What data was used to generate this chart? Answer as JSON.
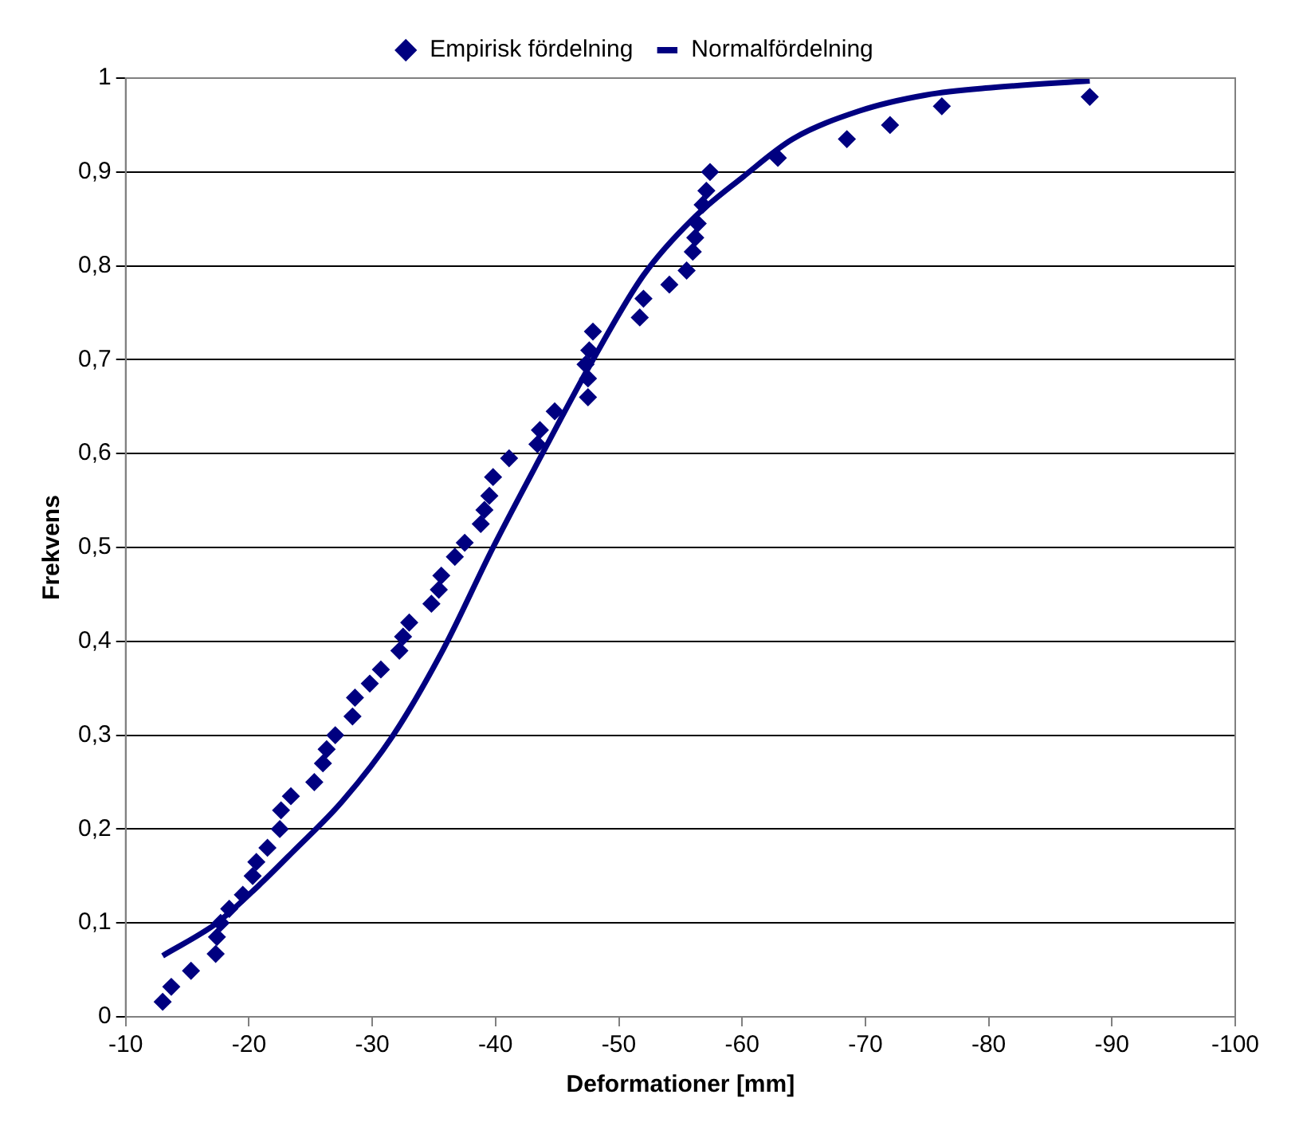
{
  "chart_data": {
    "type": "scatter",
    "xlabel": "Deformationer [mm]",
    "ylabel": "Frekvens",
    "xlim": [
      -10,
      -100
    ],
    "xticks": [
      -10,
      -20,
      -30,
      -40,
      -50,
      -60,
      -70,
      -80,
      -90,
      -100
    ],
    "ylim": [
      0,
      1
    ],
    "yticks": [
      0,
      {
        "value": 0.1,
        "label": "0,1"
      },
      {
        "value": 0.2,
        "label": "0,2"
      },
      {
        "value": 0.3,
        "label": "0,3"
      },
      {
        "value": 0.4,
        "label": "0,4"
      },
      {
        "value": 0.5,
        "label": "0,5"
      },
      {
        "value": 0.6,
        "label": "0,6"
      },
      {
        "value": 0.7,
        "label": "0,7"
      },
      {
        "value": 0.8,
        "label": "0,8"
      },
      {
        "value": 0.9,
        "label": "0,9"
      },
      1
    ],
    "grid": "y",
    "legend": "top",
    "series": [
      {
        "name": "Empirisk fördelning",
        "marker": "diamond",
        "color": "#000080",
        "x": [
          -13.0,
          -13.7,
          -15.3,
          -17.3,
          -17.4,
          -17.7,
          -18.4,
          -19.5,
          -20.3,
          -20.6,
          -21.5,
          -22.5,
          -22.6,
          -23.4,
          -25.3,
          -26,
          -26.3,
          -27,
          -28.4,
          -28.6,
          -29.8,
          -30.7,
          -32.2,
          -32.5,
          -33,
          -34.8,
          -35.4,
          -35.6,
          -36.7,
          -37.5,
          -38.8,
          -39.1,
          -39.5,
          -39.8,
          -41.1,
          -43.4,
          -43.6,
          -44.8,
          -47.5,
          -47.5,
          -47.3,
          -47.6,
          -47.9,
          -51.7,
          -52,
          -54.1,
          -55.5,
          -56,
          -56.2,
          -56.4,
          -56.8,
          -57.1,
          -57.4,
          -62.9,
          -68.5,
          -72,
          -76.2,
          -88.2
        ],
        "values": [
          0.016,
          0.032,
          0.049,
          0.067,
          0.085,
          0.1,
          0.115,
          0.13,
          0.15,
          0.165,
          0.18,
          0.2,
          0.22,
          0.235,
          0.25,
          0.27,
          0.285,
          0.3,
          0.32,
          0.34,
          0.355,
          0.37,
          0.39,
          0.405,
          0.42,
          0.44,
          0.455,
          0.47,
          0.49,
          0.505,
          0.525,
          0.54,
          0.555,
          0.575,
          0.595,
          0.61,
          0.625,
          0.645,
          0.66,
          0.68,
          0.695,
          0.71,
          0.73,
          0.745,
          0.765,
          0.78,
          0.795,
          0.815,
          0.83,
          0.845,
          0.865,
          0.88,
          0.9,
          0.915,
          0.935,
          0.95,
          0.97,
          0.98
        ]
      },
      {
        "name": "Normalfördelning",
        "type": "line",
        "marker": "none",
        "line_style": "solid",
        "color": "#000080",
        "x": [
          -13,
          -17.4,
          -20.8,
          -23.5,
          -27.6,
          -31.7,
          -35.7,
          -39.8,
          -43.8,
          -47.9,
          -52,
          -56,
          -60.1,
          -64.1,
          -69.5,
          -74.9,
          -80.4,
          -88.2
        ],
        "values": [
          0.065,
          0.1,
          0.14,
          0.175,
          0.23,
          0.3,
          0.39,
          0.5,
          0.6,
          0.7,
          0.79,
          0.85,
          0.895,
          0.935,
          0.965,
          0.982,
          0.99,
          0.997
        ]
      }
    ]
  }
}
